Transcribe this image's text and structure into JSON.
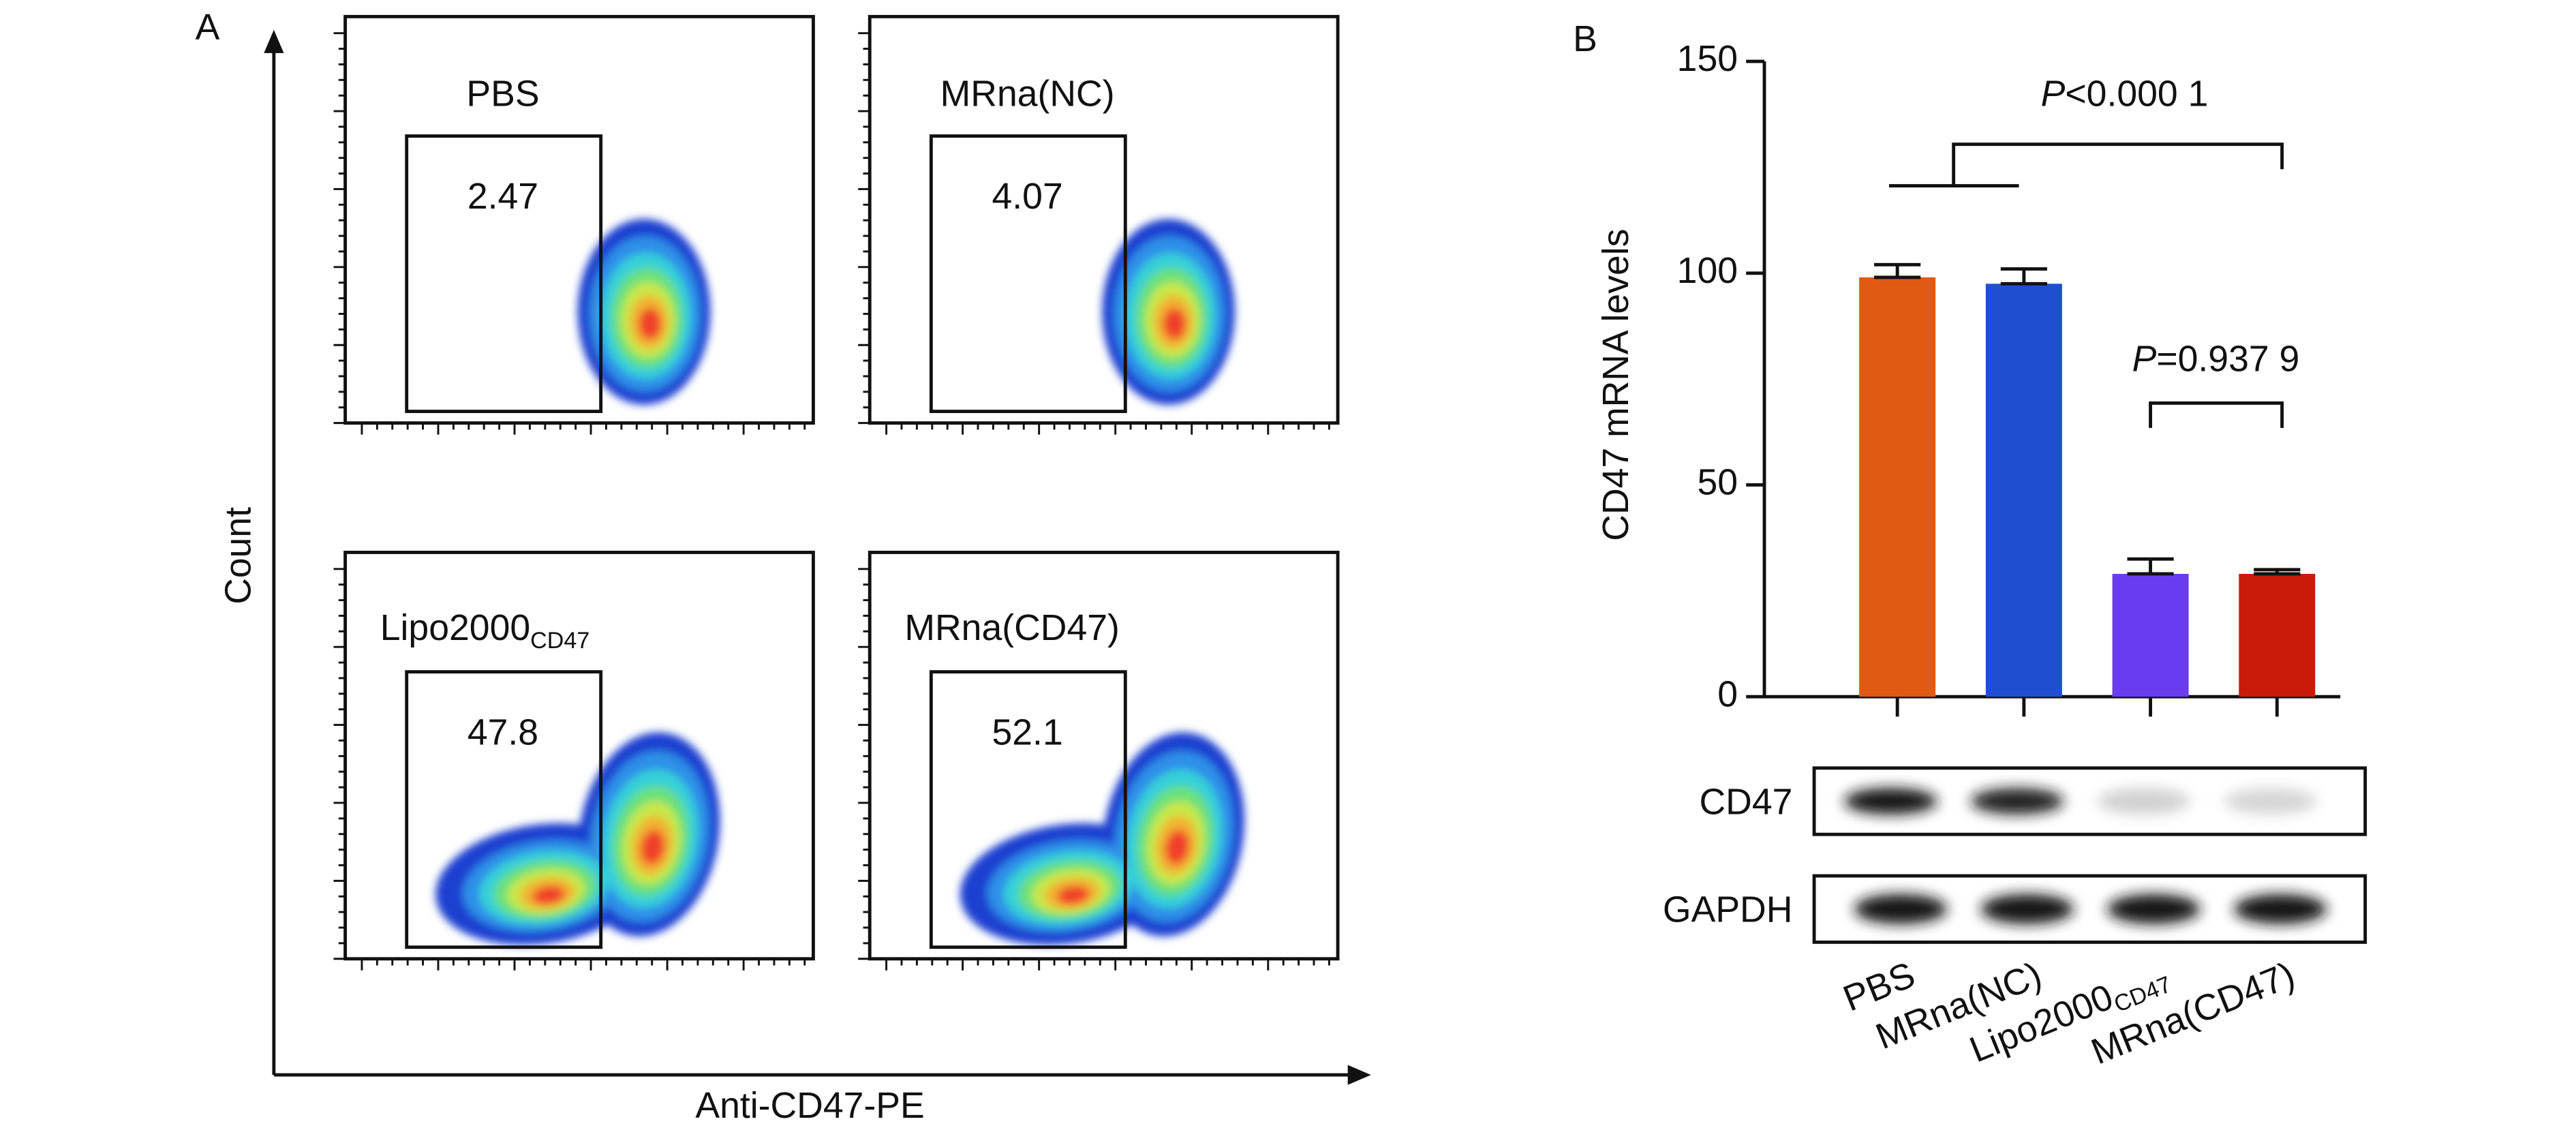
{
  "chart_data": [
    {
      "type": "flow",
      "panel": "A",
      "xlabel": "Anti-CD47-PE",
      "ylabel": "Count",
      "plots": [
        {
          "label": "PBS",
          "gate": 2.47
        },
        {
          "label": "MRna(NC)",
          "gate": 4.07
        },
        {
          "label": "Lipo2000",
          "label_subscript": "CD47",
          "gate": 47.8
        },
        {
          "label": "MRna(CD47)",
          "gate": 52.1
        }
      ]
    },
    {
      "type": "bar",
      "panel": "B",
      "ylabel": "CD47 mRNA levels",
      "categories": [
        "PBS",
        "MRna(NC)",
        "Lipo2000",
        "MRna(CD47)"
      ],
      "category_subscript": {
        "index": 2,
        "text": "CD47"
      },
      "values": [
        99,
        97.5,
        29,
        29
      ],
      "errors": [
        3,
        3.5,
        3.5,
        1
      ],
      "colors": [
        "#e05a14",
        "#1f4fd1",
        "#6a3cf0",
        "#c91a0a"
      ],
      "ylim": [
        0,
        150
      ],
      "yticks": [
        0,
        50,
        100,
        150
      ],
      "annotations": [
        {
          "italic": "P",
          "text": "<0.000 1"
        },
        {
          "italic": "P",
          "text": "=0.937 9"
        }
      ],
      "blot_labels": [
        "CD47",
        "GAPDH"
      ]
    }
  ]
}
